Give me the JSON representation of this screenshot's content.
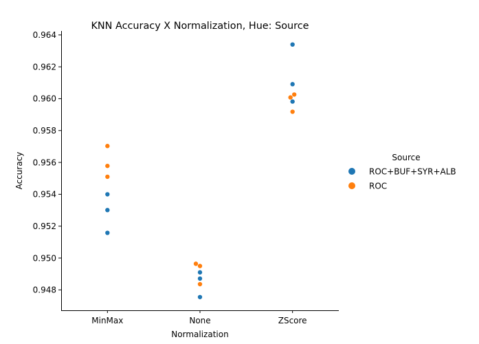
{
  "chart_data": {
    "type": "scatter",
    "title": "KNN Accuracy X Normalization, Hue: Source",
    "xlabel": "Normalization",
    "ylabel": "Accuracy",
    "categories": [
      "MinMax",
      "None",
      "ZScore"
    ],
    "ylim": [
      0.94672,
      0.96425
    ],
    "yticks": [
      0.948,
      0.95,
      0.952,
      0.954,
      0.956,
      0.958,
      0.96,
      0.962,
      0.964
    ],
    "ytick_labels": [
      "0.948",
      "0.950",
      "0.952",
      "0.954",
      "0.956",
      "0.958",
      "0.960",
      "0.962",
      "0.964"
    ],
    "grid": false,
    "legend": {
      "title": "Source",
      "placement": "right"
    },
    "series": [
      {
        "name": "ROC+BUF+SYR+ALB",
        "color": "#1f77b4",
        "points": [
          {
            "x": "MinMax",
            "y": 0.954
          },
          {
            "x": "MinMax",
            "y": 0.95301
          },
          {
            "x": "MinMax",
            "y": 0.95158
          },
          {
            "x": "None",
            "y": 0.9491
          },
          {
            "x": "None",
            "y": 0.94871
          },
          {
            "x": "None",
            "y": 0.94755
          },
          {
            "x": "ZScore",
            "y": 0.9634
          },
          {
            "x": "ZScore",
            "y": 0.96091
          },
          {
            "x": "ZScore",
            "y": 0.95982
          }
        ]
      },
      {
        "name": "ROC",
        "color": "#ff7f0e",
        "points": [
          {
            "x": "MinMax",
            "y": 0.95703
          },
          {
            "x": "MinMax",
            "y": 0.95578
          },
          {
            "x": "MinMax",
            "y": 0.9551
          },
          {
            "x": "None",
            "y": 0.94964
          },
          {
            "x": "None",
            "y": 0.9495
          },
          {
            "x": "None",
            "y": 0.94836
          },
          {
            "x": "ZScore",
            "y": 0.96026
          },
          {
            "x": "ZScore",
            "y": 0.96008
          },
          {
            "x": "ZScore",
            "y": 0.95918
          }
        ]
      }
    ]
  }
}
